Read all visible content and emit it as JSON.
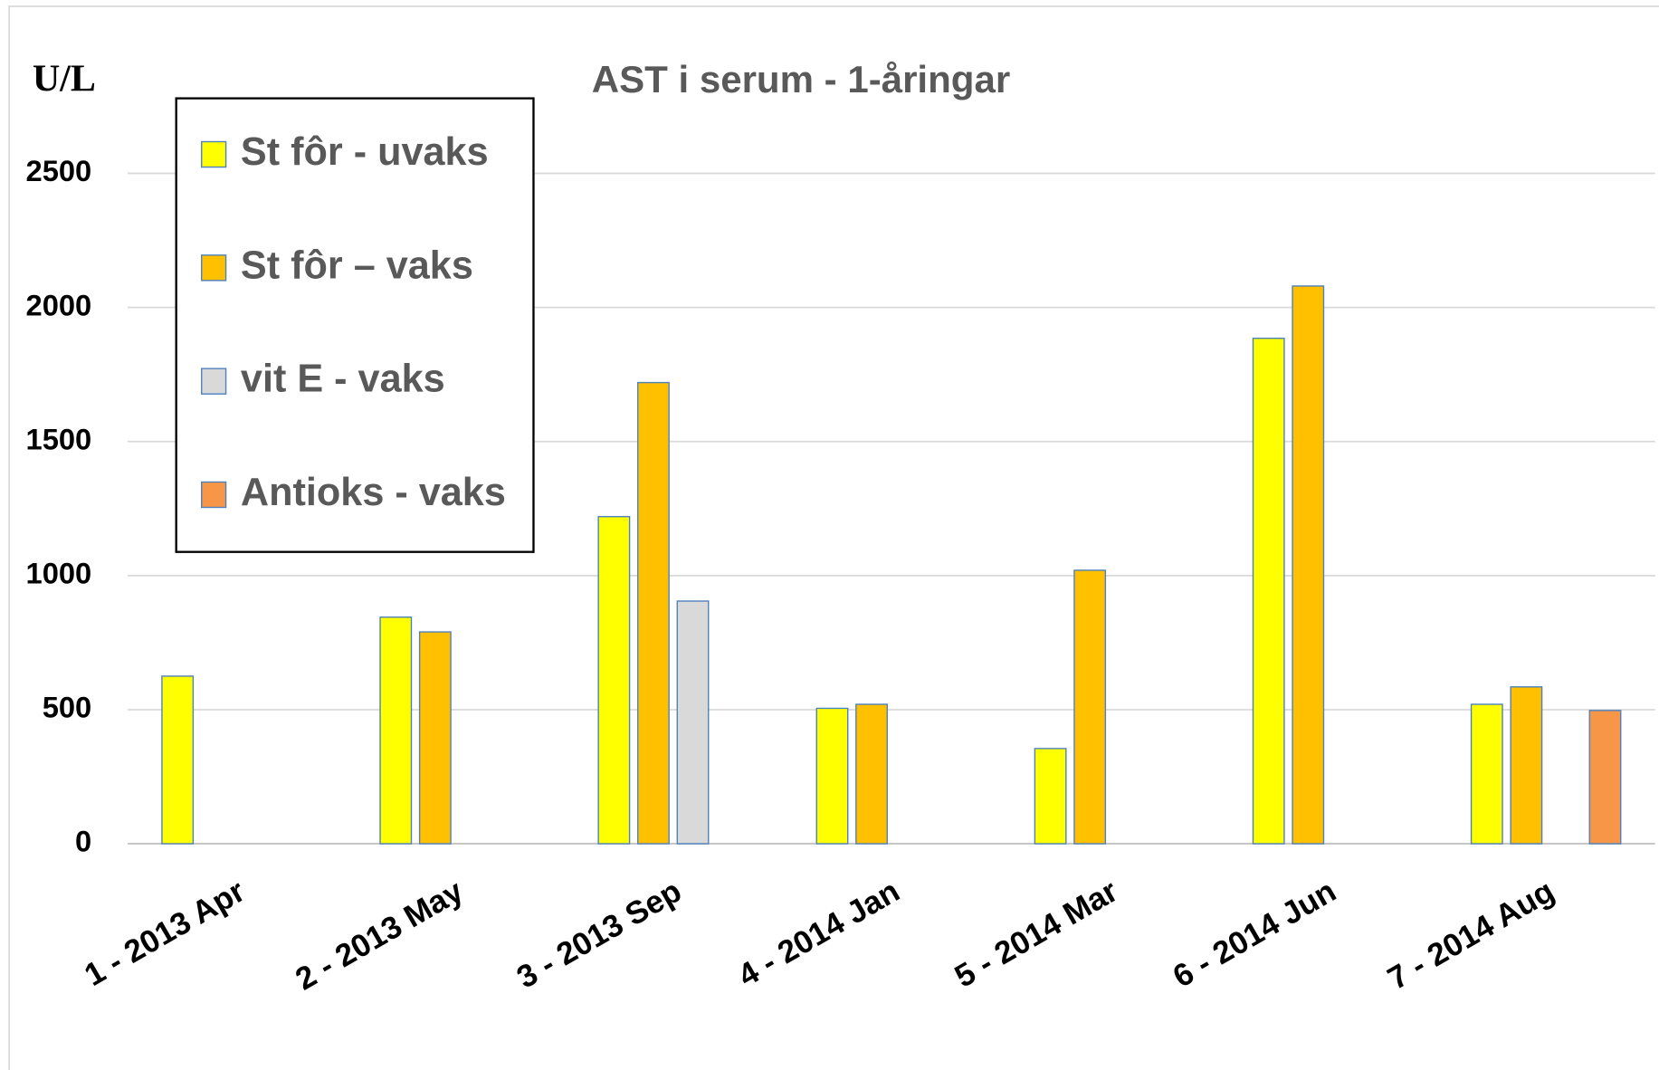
{
  "chart_data": {
    "type": "bar",
    "title": "AST i serum - 1-åringar",
    "y_label": "U/L",
    "categories": [
      "1 - 2013 Apr",
      "2 - 2013 May",
      "3 - 2013 Sep",
      "4 - 2014 Jan",
      "5 - 2014 Mar",
      "6 - 2014 Jun",
      "7 - 2014 Aug"
    ],
    "series": [
      {
        "name": "St fôr - uvaks",
        "color": "#ffff00",
        "values": [
          625,
          845,
          1220,
          505,
          355,
          1885,
          520
        ]
      },
      {
        "name": "St fôr – vaks",
        "color": "#ffc000",
        "values": [
          null,
          790,
          1720,
          520,
          1020,
          2080,
          585
        ]
      },
      {
        "name": "vit E - vaks",
        "color": "#d9d9d9",
        "values": [
          null,
          null,
          905,
          null,
          null,
          null,
          null
        ]
      },
      {
        "name": "Antioks - vaks",
        "color": "#f79646",
        "values": [
          null,
          null,
          null,
          null,
          null,
          null,
          497
        ]
      }
    ],
    "ylim": [
      0,
      2600
    ],
    "yticks": [
      0,
      500,
      1000,
      1500,
      2000,
      2500
    ],
    "grid": true,
    "legend": "upper left"
  }
}
